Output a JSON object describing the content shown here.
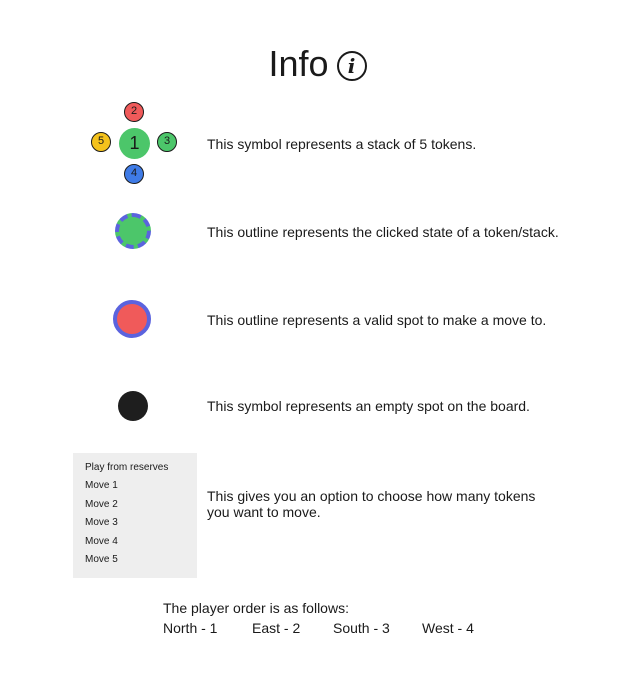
{
  "title": "Info",
  "info_icon": "info-circle-icon",
  "legend": {
    "stack": {
      "center_number": "1",
      "north_number": "2",
      "east_number": "3",
      "south_number": "4",
      "west_number": "5",
      "text": "This symbol represents a stack of 5 tokens."
    },
    "clicked": {
      "text": "This outline represents the clicked state of a token/stack."
    },
    "valid": {
      "text": "This outline represents a valid spot to make a move to."
    },
    "empty": {
      "text": "This symbol represents an empty spot on the board."
    },
    "menu": {
      "items": [
        "Play from reserves",
        "Move 1",
        "Move 2",
        "Move 3",
        "Move 4",
        "Move 5"
      ],
      "text_line1": "This gives you an option to choose how many tokens",
      "text_line2": "you want to move."
    }
  },
  "player_order": {
    "heading": "The player order is as follows:",
    "players": [
      {
        "label": "North - 1"
      },
      {
        "label": "East - 2"
      },
      {
        "label": "South - 3"
      },
      {
        "label": "West - 4"
      }
    ]
  },
  "colors": {
    "green": "#4cc66a",
    "red": "#f05a5a",
    "blue": "#3f7be6",
    "yellow": "#f4c21c",
    "outline_purple": "#5b63de",
    "empty_black": "#1e1e1e",
    "menu_bg": "#eeeeee"
  }
}
